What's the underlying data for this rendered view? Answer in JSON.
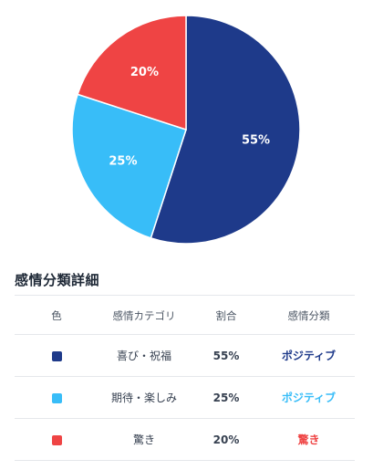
{
  "chart_data": {
    "type": "pie",
    "title": "",
    "categories": [
      "喜び・祝福",
      "期待・楽しみ",
      "驚き"
    ],
    "values": [
      55,
      25,
      20
    ],
    "labels": [
      "55%",
      "25%",
      "20%"
    ],
    "colors": [
      "#1e3a8a",
      "#38bdf8",
      "#ef4444"
    ],
    "start": "12 o'clock",
    "direction": "clockwise",
    "legend": "none"
  },
  "table": {
    "title": "感情分類詳細",
    "headers": [
      "色",
      "感情カテゴリ",
      "割合",
      "感情分類"
    ],
    "rows": [
      {
        "color": "#1e3a8a",
        "category": "喜び・祝福",
        "percent": "55%",
        "classification": "ポジティブ",
        "class_color": "#1e3a8a"
      },
      {
        "color": "#38bdf8",
        "category": "期待・楽しみ",
        "percent": "25%",
        "classification": "ポジティブ",
        "class_color": "#38bdf8"
      },
      {
        "color": "#ef4444",
        "category": "驚き",
        "percent": "20%",
        "classification": "驚き",
        "class_color": "#ef4444"
      }
    ]
  }
}
